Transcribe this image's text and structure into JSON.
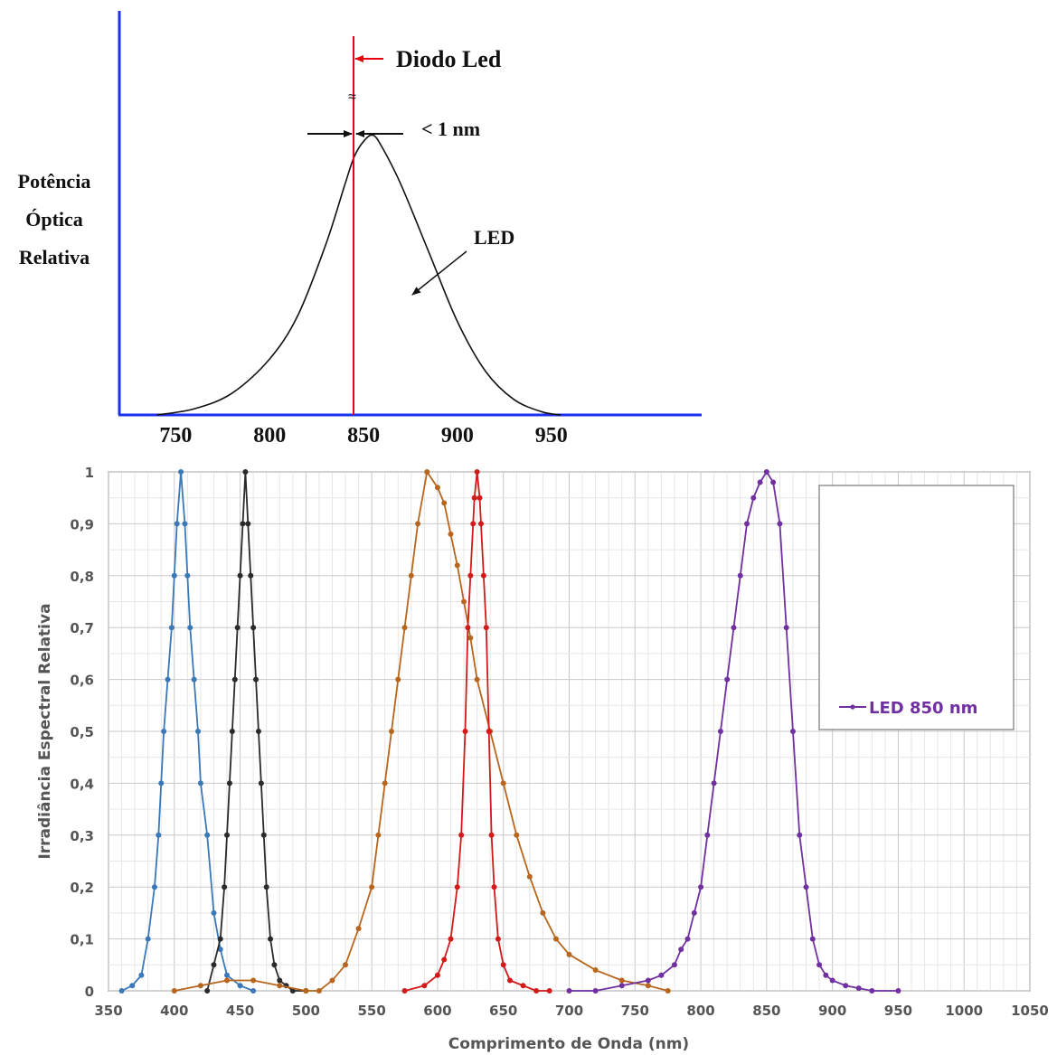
{
  "chart_data": [
    {
      "type": "line",
      "ylabel_lines": [
        "Potência",
        "Óptica",
        "Relativa"
      ],
      "x_ticks": [
        "750",
        "800",
        "850",
        "900",
        "950"
      ],
      "xlim": [
        720,
        1030
      ],
      "ylim": [
        0,
        1.3
      ],
      "annotations": {
        "laser_label": "Diodo Led",
        "width_label": "< 1 nm",
        "led_label": "LED"
      },
      "colors": {
        "axis": "#1f2ff0",
        "laser": "#e8000a",
        "curve": "#111111"
      },
      "laser_line_x": 849,
      "led_curve": {
        "x": [
          740,
          760,
          780,
          800,
          815,
          830,
          840,
          845,
          850,
          855,
          860,
          870,
          885,
          900,
          915,
          930,
          945,
          955
        ],
        "y": [
          0.0,
          0.02,
          0.07,
          0.18,
          0.32,
          0.55,
          0.74,
          0.83,
          0.88,
          0.9,
          0.86,
          0.74,
          0.52,
          0.3,
          0.14,
          0.05,
          0.01,
          0.0
        ]
      }
    },
    {
      "type": "line",
      "xlabel": "Comprimento de Onda (nm)",
      "ylabel": "Irradiância Espectral Relativa",
      "xlim": [
        350,
        1050
      ],
      "ylim": [
        0,
        1
      ],
      "x_ticks": [
        "350",
        "400",
        "450",
        "500",
        "550",
        "600",
        "650",
        "700",
        "750",
        "800",
        "850",
        "900",
        "950",
        "1000",
        "1050"
      ],
      "y_ticks": [
        "0",
        "0,1",
        "0,2",
        "0,3",
        "0,4",
        "0,5",
        "0,6",
        "0,7",
        "0,8",
        "0,9",
        "1"
      ],
      "grid": true,
      "legend_position": "right",
      "legend_entry": "LED 850 nm",
      "series": [
        {
          "color": "#3a78b8",
          "x": [
            360,
            368,
            375,
            380,
            385,
            388,
            390,
            392,
            395,
            398,
            400,
            402,
            405,
            408,
            410,
            412,
            415,
            418,
            420,
            425,
            430,
            435,
            440,
            450,
            460
          ],
          "y": [
            0.0,
            0.01,
            0.03,
            0.1,
            0.2,
            0.3,
            0.4,
            0.5,
            0.6,
            0.7,
            0.8,
            0.9,
            1.0,
            0.9,
            0.8,
            0.7,
            0.6,
            0.5,
            0.4,
            0.3,
            0.15,
            0.08,
            0.03,
            0.01,
            0.0
          ]
        },
        {
          "color": "#2a2a2a",
          "x": [
            425,
            430,
            435,
            438,
            440,
            442,
            444,
            446,
            448,
            450,
            452,
            454,
            456,
            458,
            460,
            462,
            464,
            466,
            468,
            470,
            473,
            476,
            480,
            485,
            490,
            500
          ],
          "y": [
            0.0,
            0.05,
            0.1,
            0.2,
            0.3,
            0.4,
            0.5,
            0.6,
            0.7,
            0.8,
            0.9,
            1.0,
            0.9,
            0.8,
            0.7,
            0.6,
            0.5,
            0.4,
            0.3,
            0.2,
            0.1,
            0.05,
            0.02,
            0.01,
            0.0,
            0.0
          ]
        },
        {
          "color": "#b8661e",
          "x": [
            400,
            420,
            440,
            460,
            480,
            500,
            510,
            520,
            530,
            540,
            550,
            555,
            560,
            565,
            570,
            575,
            580,
            585,
            592,
            600,
            605,
            610,
            615,
            620,
            625,
            630,
            640,
            650,
            660,
            670,
            680,
            690,
            700,
            720,
            740,
            760,
            775
          ],
          "y": [
            0.0,
            0.01,
            0.02,
            0.02,
            0.01,
            0.0,
            0.0,
            0.02,
            0.05,
            0.12,
            0.2,
            0.3,
            0.4,
            0.5,
            0.6,
            0.7,
            0.8,
            0.9,
            1.0,
            0.97,
            0.94,
            0.88,
            0.82,
            0.75,
            0.68,
            0.6,
            0.5,
            0.4,
            0.3,
            0.22,
            0.15,
            0.1,
            0.07,
            0.04,
            0.02,
            0.01,
            0.0
          ]
        },
        {
          "color": "#d21a1a",
          "x": [
            575,
            590,
            600,
            605,
            610,
            615,
            618,
            621,
            623,
            625,
            627,
            628,
            630,
            632,
            633,
            635,
            637,
            639,
            641,
            643,
            646,
            650,
            655,
            665,
            675,
            685
          ],
          "y": [
            0.0,
            0.01,
            0.03,
            0.06,
            0.1,
            0.2,
            0.3,
            0.5,
            0.7,
            0.8,
            0.9,
            0.95,
            1.0,
            0.95,
            0.9,
            0.8,
            0.7,
            0.5,
            0.3,
            0.2,
            0.1,
            0.05,
            0.02,
            0.01,
            0.0,
            0.0
          ]
        },
        {
          "color": "#7030a0",
          "x": [
            700,
            720,
            740,
            760,
            770,
            780,
            785,
            790,
            795,
            800,
            805,
            810,
            815,
            820,
            825,
            830,
            835,
            840,
            845,
            850,
            855,
            860,
            865,
            870,
            875,
            880,
            885,
            890,
            895,
            900,
            910,
            920,
            930,
            950
          ],
          "y": [
            0.0,
            0.0,
            0.01,
            0.02,
            0.03,
            0.05,
            0.08,
            0.1,
            0.15,
            0.2,
            0.3,
            0.4,
            0.5,
            0.6,
            0.7,
            0.8,
            0.9,
            0.95,
            0.98,
            1.0,
            0.98,
            0.9,
            0.7,
            0.5,
            0.3,
            0.2,
            0.1,
            0.05,
            0.03,
            0.02,
            0.01,
            0.005,
            0.0,
            0.0
          ]
        }
      ]
    }
  ]
}
